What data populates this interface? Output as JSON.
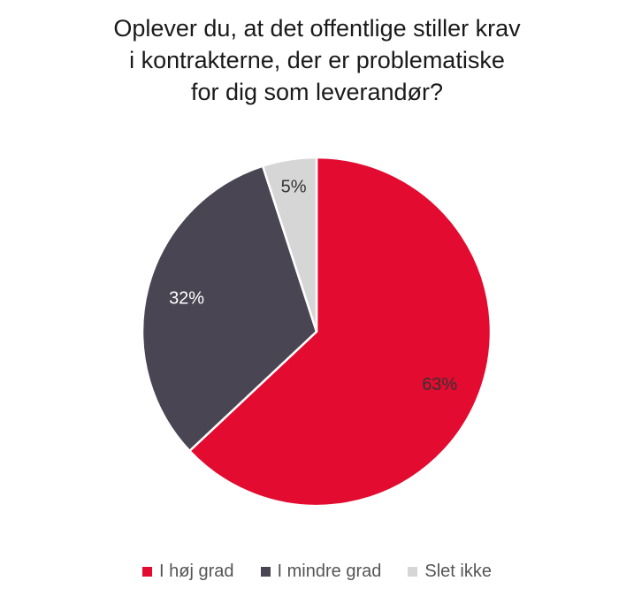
{
  "chart_data": {
    "type": "pie",
    "title_lines": [
      "Oplever du, at det offentlige stiller krav",
      "i kontrakterne, der er problematiske",
      "for dig som leverandør?"
    ],
    "slices": [
      {
        "name": "I høj grad",
        "value": 63,
        "label": "63%",
        "color": "#e30b30",
        "label_color": "#333333"
      },
      {
        "name": "I mindre grad",
        "value": 32,
        "label": "32%",
        "color": "#4a4552",
        "label_color": "#ffffff"
      },
      {
        "name": "Slet ikke",
        "value": 5,
        "label": "5%",
        "color": "#d6d6d6",
        "label_color": "#333333"
      }
    ],
    "start_angle_deg": 0,
    "direction": "clockwise",
    "legend_position": "bottom"
  }
}
